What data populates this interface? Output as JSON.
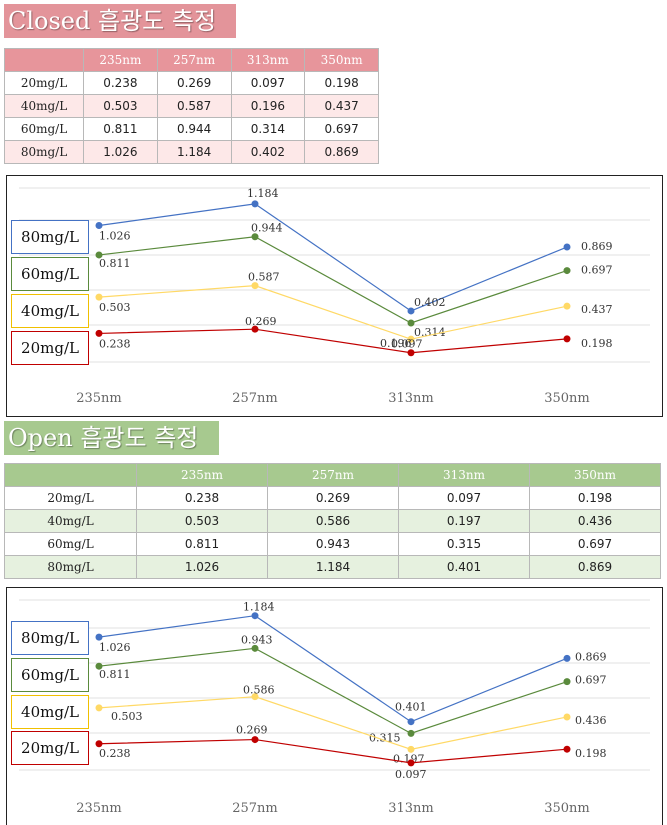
{
  "closed": {
    "title": "Closed 흡광도 측정",
    "columns": [
      "235nm",
      "257nm",
      "313nm",
      "350nm"
    ],
    "rows": [
      {
        "label": "20mg/L",
        "values": [
          "0.238",
          "0.269",
          "0.097",
          "0.198"
        ]
      },
      {
        "label": "40mg/L",
        "values": [
          "0.503",
          "0.587",
          "0.196",
          "0.437"
        ]
      },
      {
        "label": "60mg/L",
        "values": [
          "0.811",
          "0.944",
          "0.314",
          "0.697"
        ]
      },
      {
        "label": "80mg/L",
        "values": [
          "1.026",
          "1.184",
          "0.402",
          "0.869"
        ]
      }
    ]
  },
  "open": {
    "title": "Open 흡광도 측정",
    "columns": [
      "235nm",
      "257nm",
      "313nm",
      "350nm"
    ],
    "rows": [
      {
        "label": "20mg/L",
        "values": [
          "0.238",
          "0.269",
          "0.097",
          "0.198"
        ]
      },
      {
        "label": "40mg/L",
        "values": [
          "0.503",
          "0.586",
          "0.197",
          "0.436"
        ]
      },
      {
        "label": "60mg/L",
        "values": [
          "0.811",
          "0.943",
          "0.315",
          "0.697"
        ]
      },
      {
        "label": "80mg/L",
        "values": [
          "1.026",
          "1.184",
          "0.401",
          "0.869"
        ]
      }
    ]
  },
  "chart_data": [
    {
      "type": "line",
      "categories": [
        "235nm",
        "257nm",
        "313nm",
        "350nm"
      ],
      "ylim": [
        0,
        1.3
      ],
      "grid": true,
      "legend": "left",
      "series": [
        {
          "name": "80mg/L",
          "color": "#4472c4",
          "values": [
            1.026,
            1.184,
            0.402,
            0.869
          ]
        },
        {
          "name": "60mg/L",
          "color": "#5a8a3c",
          "values": [
            0.811,
            0.944,
            0.314,
            0.697
          ]
        },
        {
          "name": "40mg/L",
          "color": "#ffd966",
          "values": [
            0.503,
            0.587,
            0.196,
            0.437
          ]
        },
        {
          "name": "20mg/L",
          "color": "#c00000",
          "values": [
            0.238,
            0.269,
            0.097,
            0.198
          ]
        }
      ]
    },
    {
      "type": "line",
      "categories": [
        "235nm",
        "257nm",
        "313nm",
        "350nm"
      ],
      "ylim": [
        0,
        1.3
      ],
      "grid": true,
      "legend": "left",
      "series": [
        {
          "name": "80mg/L",
          "color": "#4472c4",
          "values": [
            1.026,
            1.184,
            0.401,
            0.869
          ]
        },
        {
          "name": "60mg/L",
          "color": "#5a8a3c",
          "values": [
            0.811,
            0.943,
            0.315,
            0.697
          ]
        },
        {
          "name": "40mg/L",
          "color": "#ffd966",
          "values": [
            0.503,
            0.586,
            0.197,
            0.436
          ]
        },
        {
          "name": "20mg/L",
          "color": "#c00000",
          "values": [
            0.238,
            0.269,
            0.097,
            0.198
          ]
        }
      ]
    }
  ]
}
